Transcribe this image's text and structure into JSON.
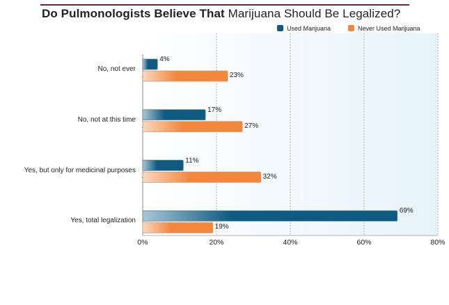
{
  "title": {
    "bold": "Do Pulmonologists Believe That",
    "normal": "Marijuana Should Be Legalized?"
  },
  "colors": {
    "title_rule": "#7a1f2b",
    "used": "#0e5a80",
    "used_light": "#a9c7d6",
    "never": "#f4873c",
    "never_light": "#fbd9c0",
    "plot_bg_start": "#ffffff",
    "plot_bg_end": "#e6f3fb",
    "grid": "#9a9a9a"
  },
  "chart_data": {
    "type": "bar",
    "orientation": "horizontal",
    "categories": [
      "No, not ever",
      "No, not at this time",
      "Yes, but only for medicinal purposes",
      "Yes, total legalization"
    ],
    "series": [
      {
        "name": "Used Marijuana",
        "values": [
          4,
          17,
          11,
          69
        ],
        "labels": [
          "4%",
          "17%",
          "11%",
          "69%"
        ]
      },
      {
        "name": "Never Used Marijuana",
        "values": [
          23,
          27,
          32,
          19
        ],
        "labels": [
          "23%",
          "27%",
          "32%",
          "19%"
        ]
      }
    ],
    "xlim": [
      0,
      80
    ],
    "xticks": [
      0,
      20,
      40,
      60,
      80
    ],
    "xtick_labels": [
      "0%",
      "20%",
      "40%",
      "60%",
      "80%"
    ],
    "grid": "vertical dotted",
    "legend_position": "top-right"
  }
}
